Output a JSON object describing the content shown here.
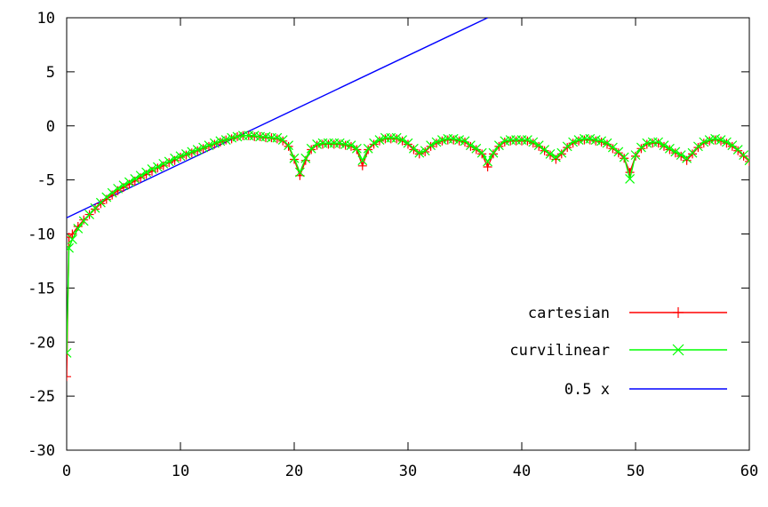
{
  "chart_data": {
    "type": "line",
    "title": "",
    "xlabel": "",
    "ylabel": "",
    "xlim": [
      0,
      60
    ],
    "ylim": [
      -30,
      10
    ],
    "grid": false,
    "legend_position": "bottom-right",
    "x_ticks": [
      0,
      10,
      20,
      30,
      40,
      50,
      60
    ],
    "y_ticks": [
      10,
      5,
      0,
      -5,
      -10,
      -15,
      -20,
      -25,
      -30
    ],
    "series": [
      {
        "name": "cartesian",
        "color": "#ff0000",
        "marker": "plus",
        "x": [
          0,
          0.2,
          0.5,
          1,
          1.5,
          2,
          2.5,
          3,
          3.5,
          4,
          4.5,
          5,
          5.5,
          6,
          6.5,
          7,
          7.5,
          8,
          8.5,
          9,
          9.5,
          10,
          10.5,
          11,
          11.5,
          12,
          12.5,
          13,
          13.5,
          14,
          14.5,
          15,
          15.5,
          16,
          16.5,
          17,
          17.5,
          18,
          18.5,
          19,
          19.5,
          20,
          20.5,
          21,
          21.5,
          22,
          22.5,
          23,
          23.5,
          24,
          24.5,
          25,
          25.5,
          26,
          26.5,
          27,
          27.5,
          28,
          28.5,
          29,
          29.5,
          30,
          30.5,
          31,
          31.5,
          32,
          32.5,
          33,
          33.5,
          34,
          34.5,
          35,
          35.5,
          36,
          36.5,
          37,
          37.5,
          38,
          38.5,
          39,
          39.5,
          40,
          40.5,
          41,
          41.5,
          42,
          42.5,
          43,
          43.5,
          44,
          44.5,
          45,
          45.5,
          46,
          46.5,
          47,
          47.5,
          48,
          48.5,
          49,
          49.5,
          50,
          50.5,
          51,
          51.5,
          52,
          52.5,
          53,
          53.5,
          54,
          54.5,
          55,
          55.5,
          56,
          56.5,
          57,
          57.5,
          58,
          58.5,
          59,
          59.5,
          60
        ],
        "y": [
          -23.2,
          -10.3,
          -10,
          -9.3,
          -8.7,
          -8.2,
          -7.7,
          -7.2,
          -6.8,
          -6.4,
          -6,
          -5.7,
          -5.4,
          -5.1,
          -4.8,
          -4.5,
          -4.2,
          -3.9,
          -3.7,
          -3.4,
          -3.2,
          -2.9,
          -2.7,
          -2.5,
          -2.3,
          -2.1,
          -1.9,
          -1.7,
          -1.5,
          -1.3,
          -1.2,
          -1,
          -0.9,
          -0.9,
          -1,
          -1,
          -1.1,
          -1.1,
          -1.2,
          -1.4,
          -1.9,
          -3.1,
          -4.6,
          -3.2,
          -2.2,
          -1.8,
          -1.7,
          -1.7,
          -1.7,
          -1.7,
          -1.8,
          -1.9,
          -2.2,
          -3.7,
          -2.2,
          -1.7,
          -1.4,
          -1.2,
          -1.2,
          -1.2,
          -1.4,
          -1.7,
          -2.2,
          -2.6,
          -2.4,
          -1.9,
          -1.6,
          -1.4,
          -1.3,
          -1.3,
          -1.4,
          -1.5,
          -1.9,
          -2.2,
          -2.6,
          -3.8,
          -2.6,
          -1.9,
          -1.5,
          -1.4,
          -1.4,
          -1.4,
          -1.4,
          -1.6,
          -1.9,
          -2.3,
          -2.7,
          -3.1,
          -2.6,
          -2,
          -1.6,
          -1.4,
          -1.3,
          -1.3,
          -1.4,
          -1.5,
          -1.7,
          -2.1,
          -2.5,
          -3,
          -4.3,
          -2.8,
          -2.1,
          -1.7,
          -1.6,
          -1.6,
          -1.9,
          -2.2,
          -2.5,
          -2.8,
          -3.2,
          -2.6,
          -2,
          -1.6,
          -1.4,
          -1.3,
          -1.4,
          -1.6,
          -1.9,
          -2.3,
          -2.8,
          -3.3
        ]
      },
      {
        "name": "curvilinear",
        "color": "#00ff00",
        "marker": "x",
        "x": [
          0,
          0.2,
          0.5,
          1,
          1.5,
          2,
          2.5,
          3,
          3.5,
          4,
          4.5,
          5,
          5.5,
          6,
          6.5,
          7,
          7.5,
          8,
          8.5,
          9,
          9.5,
          10,
          10.5,
          11,
          11.5,
          12,
          12.5,
          13,
          13.5,
          14,
          14.5,
          15,
          15.5,
          16,
          16.5,
          17,
          17.5,
          18,
          18.5,
          19,
          19.5,
          20,
          20.5,
          21,
          21.5,
          22,
          22.5,
          23,
          23.5,
          24,
          24.5,
          25,
          25.5,
          26,
          26.5,
          27,
          27.5,
          28,
          28.5,
          29,
          29.5,
          30,
          30.5,
          31,
          31.5,
          32,
          32.5,
          33,
          33.5,
          34,
          34.5,
          35,
          35.5,
          36,
          36.5,
          37,
          37.5,
          38,
          38.5,
          39,
          39.5,
          40,
          40.5,
          41,
          41.5,
          42,
          42.5,
          43,
          43.5,
          44,
          44.5,
          45,
          45.5,
          46,
          46.5,
          47,
          47.5,
          48,
          48.5,
          49,
          49.5,
          50,
          50.5,
          51,
          51.5,
          52,
          52.5,
          53,
          53.5,
          54,
          54.5,
          55,
          55.5,
          56,
          56.5,
          57,
          57.5,
          58,
          58.5,
          59,
          59.5,
          60
        ],
        "y": [
          -21,
          -11.3,
          -10.5,
          -9.5,
          -8.8,
          -8.2,
          -7.6,
          -7.1,
          -6.6,
          -6.2,
          -5.8,
          -5.5,
          -5.2,
          -4.9,
          -4.6,
          -4.3,
          -4,
          -3.8,
          -3.5,
          -3.3,
          -3,
          -2.8,
          -2.6,
          -2.4,
          -2.2,
          -2,
          -1.8,
          -1.6,
          -1.4,
          -1.3,
          -1.1,
          -1,
          -0.9,
          -0.9,
          -0.9,
          -1,
          -1,
          -1.1,
          -1.1,
          -1.3,
          -1.8,
          -3,
          -4.3,
          -3,
          -2.1,
          -1.7,
          -1.6,
          -1.6,
          -1.6,
          -1.6,
          -1.7,
          -1.8,
          -2.1,
          -3.2,
          -2.1,
          -1.6,
          -1.3,
          -1.1,
          -1.1,
          -1.1,
          -1.3,
          -1.6,
          -2.1,
          -2.5,
          -2.3,
          -1.8,
          -1.5,
          -1.3,
          -1.2,
          -1.2,
          -1.3,
          -1.4,
          -1.8,
          -2.1,
          -2.5,
          -3.3,
          -2.5,
          -1.8,
          -1.4,
          -1.3,
          -1.3,
          -1.3,
          -1.3,
          -1.5,
          -1.8,
          -2.2,
          -2.6,
          -2.9,
          -2.5,
          -1.9,
          -1.5,
          -1.3,
          -1.2,
          -1.2,
          -1.3,
          -1.4,
          -1.6,
          -2,
          -2.4,
          -2.9,
          -4.9,
          -2.7,
          -2,
          -1.6,
          -1.5,
          -1.5,
          -1.8,
          -2.1,
          -2.4,
          -2.7,
          -3,
          -2.5,
          -1.9,
          -1.5,
          -1.3,
          -1.2,
          -1.3,
          -1.5,
          -1.8,
          -2.2,
          -2.7,
          -3.2
        ]
      },
      {
        "name": "0.5 x",
        "color": "#0000ff",
        "marker": "none",
        "x": [
          0,
          37
        ],
        "y": [
          -8.5,
          10
        ]
      }
    ]
  }
}
